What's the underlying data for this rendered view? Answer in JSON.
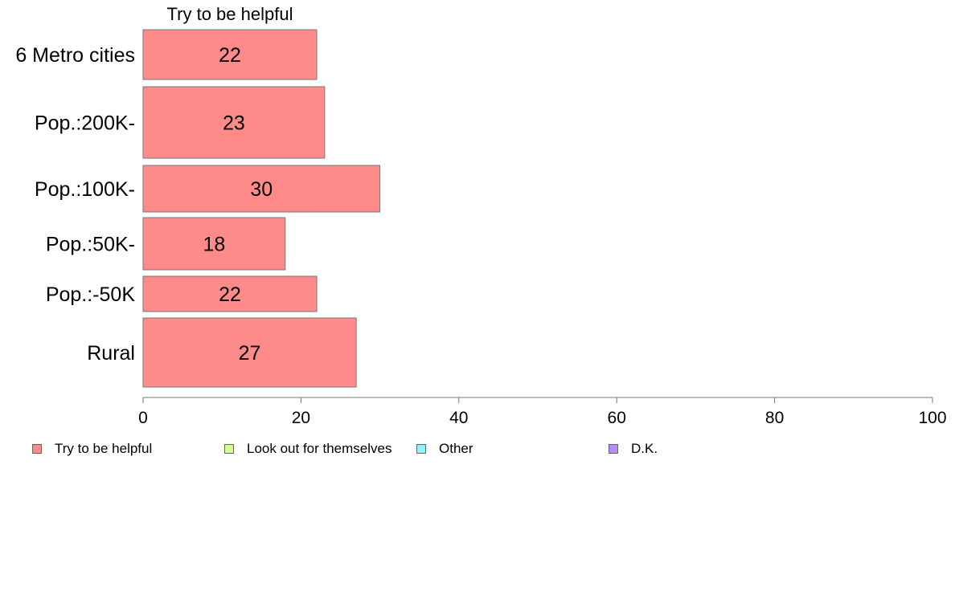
{
  "chart_data": {
    "type": "bar",
    "orientation": "horizontal",
    "title": "Try to be helpful",
    "categories": [
      "6 Metro cities",
      "Pop.:200K-",
      "Pop.:100K-",
      "Pop.:50K-",
      "Pop.:-50K",
      "Rural"
    ],
    "values": [
      22,
      23,
      30,
      18,
      22,
      27
    ],
    "xlim": [
      0,
      100
    ],
    "xticks": [
      "0",
      "20",
      "40",
      "60",
      "80",
      "100"
    ],
    "grid": false,
    "legend_position": "bottom",
    "series_color": "#ff8a8a",
    "legend": [
      {
        "label": "Try to be helpful",
        "color": "#ff8a8a"
      },
      {
        "label": "Look out for themselves",
        "color": "#d4ff8a"
      },
      {
        "label": "Other",
        "color": "#8af5ff"
      },
      {
        "label": "D.K.",
        "color": "#b88aff"
      }
    ]
  }
}
